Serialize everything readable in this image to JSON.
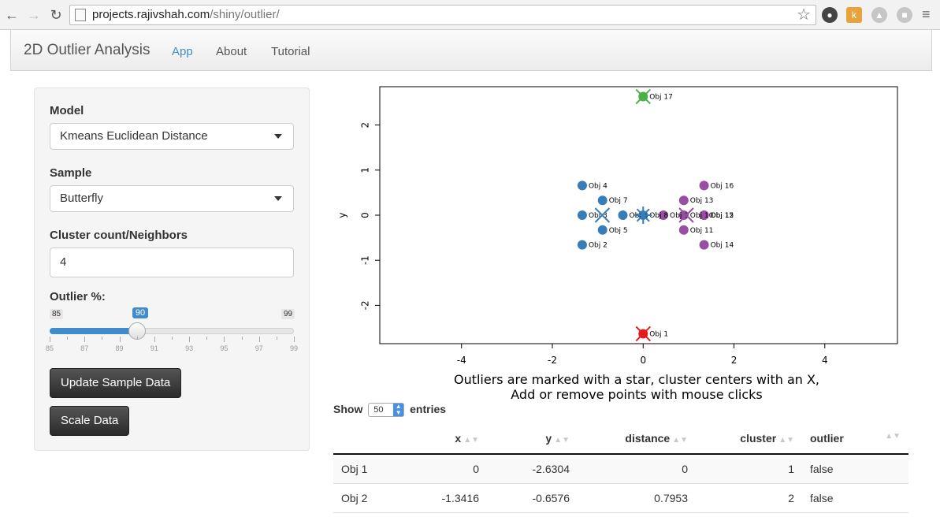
{
  "browser": {
    "url_host": "projects.rajivshah.com",
    "url_path": "/shiny/outlier/"
  },
  "navbar": {
    "brand": "2D Outlier Analysis",
    "links": [
      "App",
      "About",
      "Tutorial"
    ],
    "active": "App"
  },
  "sidebar": {
    "model_label": "Model",
    "model_value": "Kmeans Euclidean Distance",
    "sample_label": "Sample",
    "sample_value": "Butterfly",
    "cluster_label": "Cluster count/Neighbors",
    "cluster_value": "4",
    "outlier_label": "Outlier %:",
    "slider": {
      "min": 85,
      "max": 99,
      "value": 90,
      "tick_labels": [
        "85",
        "87",
        "89",
        "91",
        "93",
        "95",
        "97",
        "99"
      ]
    },
    "update_button": "Update Sample Data",
    "scale_button": "Scale Data"
  },
  "chart_data": {
    "type": "scatter",
    "ylabel": "y",
    "xlim": [
      -5.8,
      5.6
    ],
    "ylim": [
      -2.85,
      2.85
    ],
    "x_ticks": [
      -4,
      -2,
      0,
      2,
      4
    ],
    "y_ticks": [
      -2,
      -1,
      0,
      1,
      2
    ],
    "grid": false,
    "colors": {
      "c1": "#e41a1c",
      "c2": "#377eb8",
      "c3": "#4daf4a",
      "c4": "#984ea3"
    },
    "points": [
      {
        "label": "Obj 1",
        "x": 0,
        "y": -2.6304,
        "cluster": 1
      },
      {
        "label": "Obj 2",
        "x": -1.3416,
        "y": -0.6576,
        "cluster": 2
      },
      {
        "label": "Obj 3",
        "x": -1.3416,
        "y": 0,
        "cluster": 2
      },
      {
        "label": "Obj 4",
        "x": -1.3416,
        "y": 0.6576,
        "cluster": 2
      },
      {
        "label": "Obj 5",
        "x": -0.8944,
        "y": -0.3288,
        "cluster": 2
      },
      {
        "label": "Obj 6",
        "x": -0.4472,
        "y": 0,
        "cluster": 2
      },
      {
        "label": "Obj 7",
        "x": -0.8944,
        "y": 0.3288,
        "cluster": 2
      },
      {
        "label": "Obj 8",
        "x": 0,
        "y": 0,
        "cluster": 2
      },
      {
        "label": "Obj 9",
        "x": 0.4472,
        "y": 0,
        "cluster": 4
      },
      {
        "label": "Obj 10",
        "x": 0.8944,
        "y": 0,
        "cluster": 4
      },
      {
        "label": "Obj 11",
        "x": 0.8944,
        "y": -0.3288,
        "cluster": 4
      },
      {
        "label": "Obj 12",
        "x": 1.3416,
        "y": 0,
        "cluster": 4
      },
      {
        "label": "Obj 13",
        "x": 0.8944,
        "y": 0.3288,
        "cluster": 4
      },
      {
        "label": "Obj 14",
        "x": 1.3416,
        "y": -0.6576,
        "cluster": 4
      },
      {
        "label": "Obj 15",
        "x": 1.3416,
        "y": 0,
        "cluster": 4
      },
      {
        "label": "Obj 16",
        "x": 1.3416,
        "y": 0.6576,
        "cluster": 4
      },
      {
        "label": "Obj 17",
        "x": 0,
        "y": 2.6304,
        "cluster": 3
      }
    ],
    "centers": [
      {
        "x": 0,
        "y": -2.6304,
        "cluster": 1
      },
      {
        "x": -0.9,
        "y": 0,
        "cluster": 2
      },
      {
        "x": 0,
        "y": 2.6304,
        "cluster": 3
      },
      {
        "x": 0.95,
        "y": 0,
        "cluster": 4
      }
    ],
    "outlier_stars": [
      {
        "x": 0,
        "y": 0,
        "cluster": 2
      }
    ]
  },
  "caption": {
    "line1": "Outliers are marked with a star, cluster centers with an X,",
    "line2": "Add or remove points with mouse clicks"
  },
  "table": {
    "show_label": "Show",
    "length": "50",
    "entries_label": "entries",
    "headers": [
      "x",
      "y",
      "distance",
      "cluster",
      "outlier"
    ],
    "rows": [
      [
        "Obj 1",
        "0",
        "-2.6304",
        "0",
        "1",
        "false"
      ],
      [
        "Obj 2",
        "-1.3416",
        "-0.6576",
        "0.7953",
        "2",
        "false"
      ]
    ]
  }
}
